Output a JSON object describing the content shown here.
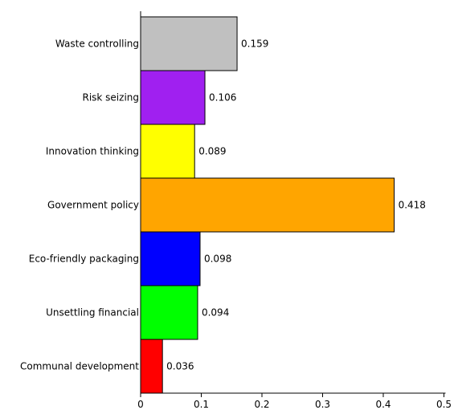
{
  "chart_data": {
    "type": "bar",
    "orientation": "horizontal",
    "title": "",
    "xlabel": "",
    "ylabel": "",
    "xlim": [
      0,
      0.5
    ],
    "xticks": [
      0,
      0.1,
      0.2,
      0.3,
      0.4,
      0.5
    ],
    "xtick_labels": [
      "0",
      "0.1",
      "0.2",
      "0.3",
      "0.4",
      "0.5"
    ],
    "grid": false,
    "legend": "none",
    "categories": [
      "Waste controlling",
      "Risk seizing",
      "Innovation thinking",
      "Government policy",
      "Eco-friendly packaging",
      "Unsettling financial",
      "Communal development"
    ],
    "values": [
      0.159,
      0.106,
      0.089,
      0.418,
      0.098,
      0.094,
      0.036
    ],
    "value_labels": [
      "0.159",
      "0.106",
      "0.089",
      "0.418",
      "0.098",
      "0.094",
      "0.036"
    ],
    "colors": [
      "#c0c0c0",
      "#a020f0",
      "#ffff00",
      "#ffa500",
      "#0000ff",
      "#00ff00",
      "#ff0000"
    ]
  }
}
